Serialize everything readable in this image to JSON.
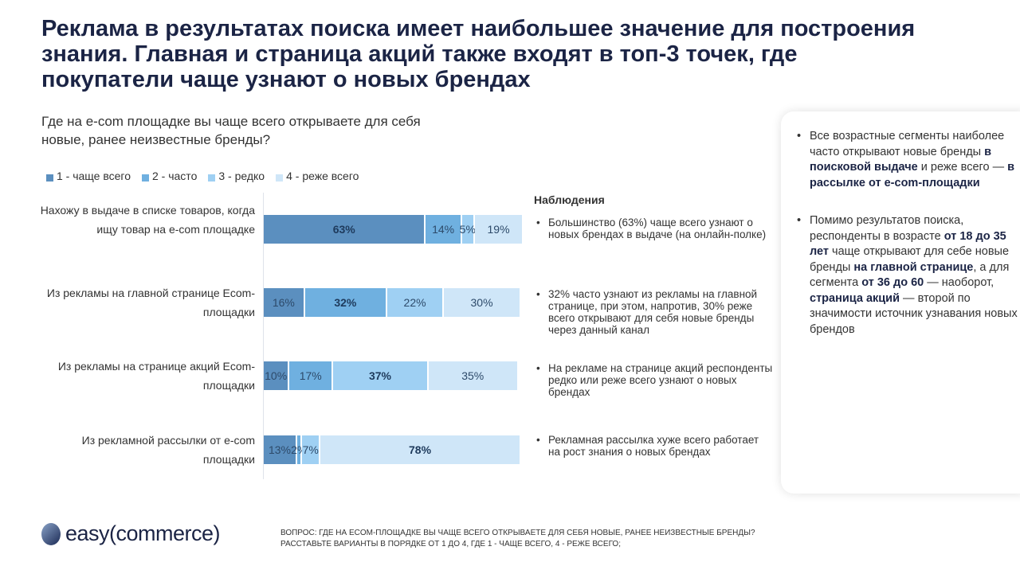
{
  "title": "Реклама в результатах поиска имеет наибольшее значение для построения знания. Главная и страница акций также входят в топ-3 точек, где покупатели чаще узнают о новых брендах",
  "chart_data": {
    "type": "bar",
    "orientation": "horizontal-stacked-100",
    "title": "Где на e-com площадке вы чаще всего открываете для себя новые, ранее неизвестные бренды?",
    "legend_position": "top",
    "categories": [
      "Нахожу в выдаче в списке товаров, когда ищу товар на e-com площадке",
      "Из рекламы на главной странице Ecom-площадки",
      "Из рекламы на странице акций Ecom-площадки",
      "Из рекламной рассылки от e-com площадки"
    ],
    "series": [
      {
        "name": "1 - чаще всего",
        "color": "#5b8fbf",
        "values": [
          63,
          16,
          10,
          13
        ]
      },
      {
        "name": "2 - часто",
        "color": "#6fb0e0",
        "values": [
          14,
          32,
          17,
          2
        ]
      },
      {
        "name": "3 - редко",
        "color": "#9fd0f3",
        "values": [
          5,
          22,
          37,
          7
        ]
      },
      {
        "name": "4 - реже всего",
        "color": "#cfe6f8",
        "values": [
          19,
          30,
          35,
          78
        ]
      }
    ],
    "bold_labels": [
      [
        0,
        0
      ],
      [
        1,
        1
      ],
      [
        2,
        2
      ],
      [
        3,
        3
      ]
    ],
    "unit": "%"
  },
  "observations": {
    "heading": "Наблюдения",
    "items": [
      "Большинство (63%) чаще всего узнают о новых брендах в выдаче (на онлайн-полке)",
      "32% часто узнают из рекламы на главной странице, при этом, напротив, 30% реже всего открывают для себя новые бренды через данный канал",
      "На рекламе на странице акций респонденты редко или реже всего узнают о новых брендах",
      "Рекламная рассылка хуже всего работает на рост знания о новых брендах"
    ]
  },
  "panel": {
    "b1": [
      "Все возрастные сегменты наиболее часто открывают новые бренды ",
      "в поисковой выдаче",
      " и реже всего — ",
      "в рассылке от e-com-площадки"
    ],
    "b2": [
      "Помимо результатов поиска, респонденты в возрасте ",
      "от 18 до 35 лет",
      " чаще открывают для себе новые бренды ",
      "на главной странице",
      ", а для сегмента ",
      "от 36 до 60",
      " — наоборот, ",
      "страница акций",
      " — второй по значимости источник узнавания новых брендов"
    ]
  },
  "logo": "easy(commerce)",
  "footnote": {
    "line1": "Вопрос: где на Ecom-площадке вы чаще всего открываете для себя новые, ранее неизвестные бренды?",
    "line2": "Расставьте варианты в порядке от 1 до 4, где 1 - чаще всего, 4 - реже всего;"
  }
}
